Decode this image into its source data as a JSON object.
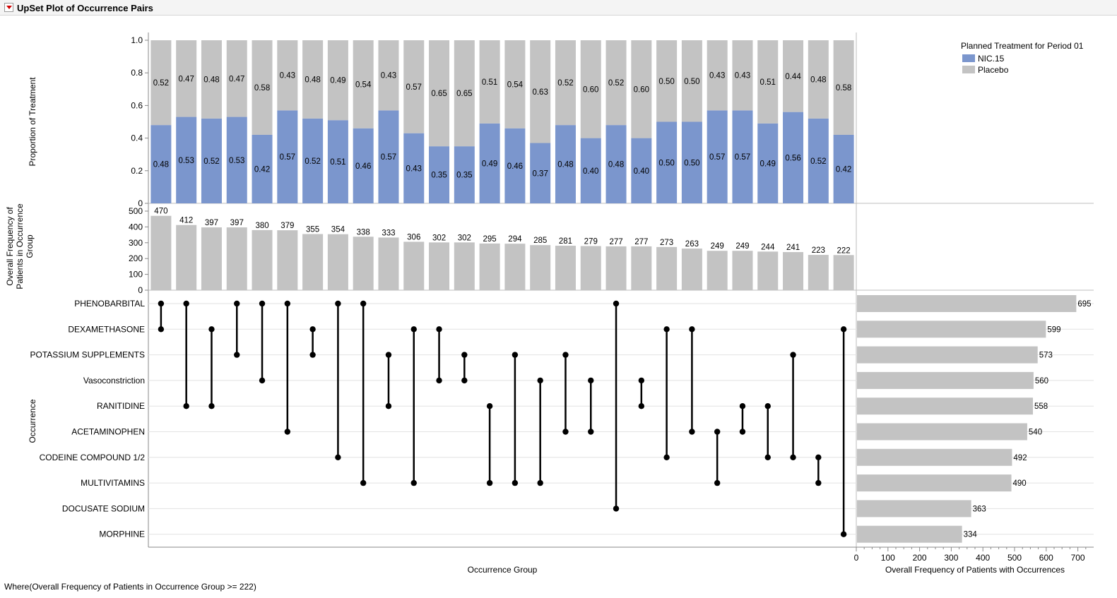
{
  "header": {
    "title": "UpSet Plot of Occurrence Pairs",
    "toggle_icon": "red-disclosure-triangle-icon"
  },
  "footer": {
    "where": "Where(Overall Frequency of Patients in Occurrence Group >= 222)"
  },
  "colors": {
    "nic": "#7b96cd",
    "placebo": "#c3c3c3",
    "dot": "#000000",
    "grid": "#e2e2e2",
    "axis": "#888888"
  },
  "chart_data": {
    "type": "upset",
    "proportion_panel": {
      "type": "bar",
      "stacked": true,
      "ylabel": "Proportion of Treatment",
      "ylim": [
        0,
        1
      ],
      "yticks": [
        "0",
        "0.2",
        "0.4",
        "0.6",
        "0.8",
        "1.0"
      ],
      "legend": {
        "title": "Planned Treatment for Period 01",
        "position": "top-right",
        "entries": [
          "NIC.15",
          "Placebo"
        ]
      },
      "series": [
        {
          "name": "NIC.15",
          "values": [
            0.48,
            0.53,
            0.52,
            0.53,
            0.42,
            0.57,
            0.52,
            0.51,
            0.46,
            0.57,
            0.43,
            0.35,
            0.35,
            0.49,
            0.46,
            0.37,
            0.48,
            0.4,
            0.48,
            0.4,
            0.5,
            0.5,
            0.57,
            0.57,
            0.49,
            0.56,
            0.52,
            0.42
          ]
        },
        {
          "name": "Placebo",
          "values": [
            0.52,
            0.47,
            0.48,
            0.47,
            0.58,
            0.43,
            0.48,
            0.49,
            0.54,
            0.43,
            0.57,
            0.65,
            0.65,
            0.51,
            0.54,
            0.63,
            0.52,
            0.6,
            0.52,
            0.6,
            0.5,
            0.5,
            0.43,
            0.43,
            0.51,
            0.44,
            0.48,
            0.58
          ]
        }
      ]
    },
    "frequency_panel": {
      "type": "bar",
      "ylabel": "Overall Frequency of Patients in Occurrence Group",
      "ylabel_lines": [
        "Overall Frequency of",
        "Patients in Occurrence",
        "Group"
      ],
      "ylim": [
        0,
        500
      ],
      "yticks": [
        "0",
        "100",
        "200",
        "300",
        "400",
        "500"
      ],
      "values": [
        470,
        412,
        397,
        397,
        380,
        379,
        355,
        354,
        338,
        333,
        306,
        302,
        302,
        295,
        294,
        285,
        281,
        279,
        277,
        277,
        273,
        263,
        249,
        249,
        244,
        241,
        223,
        222
      ]
    },
    "matrix": {
      "type": "dot-matrix",
      "xlabel": "Occurrence Group",
      "ylabel": "Occurrence",
      "occurrences": [
        "PHENOBARBITAL",
        "DEXAMETHASONE",
        "POTASSIUM SUPPLEMENTS",
        "Vasoconstriction",
        "RANITIDINE",
        "ACETAMINOPHEN",
        "CODEINE COMPOUND 1/2",
        "MULTIVITAMINS",
        "DOCUSATE SODIUM",
        "MORPHINE"
      ],
      "pairs": [
        [
          0,
          1
        ],
        [
          0,
          4
        ],
        [
          1,
          4
        ],
        [
          0,
          2
        ],
        [
          0,
          3
        ],
        [
          0,
          5
        ],
        [
          1,
          2
        ],
        [
          0,
          6
        ],
        [
          0,
          7
        ],
        [
          2,
          4
        ],
        [
          1,
          7
        ],
        [
          1,
          3
        ],
        [
          2,
          3
        ],
        [
          4,
          7
        ],
        [
          2,
          7
        ],
        [
          3,
          7
        ],
        [
          2,
          5
        ],
        [
          3,
          5
        ],
        [
          0,
          8
        ],
        [
          3,
          4
        ],
        [
          1,
          6
        ],
        [
          1,
          5
        ],
        [
          5,
          7
        ],
        [
          4,
          5
        ],
        [
          4,
          6
        ],
        [
          2,
          6
        ],
        [
          6,
          7
        ],
        [
          1,
          9
        ]
      ]
    },
    "occurrence_panel": {
      "type": "bar",
      "orientation": "horizontal",
      "xlabel": "Overall Frequency of Patients with Occurrences",
      "xlim": [
        0,
        750
      ],
      "xticks": [
        "0",
        "100",
        "200",
        "300",
        "400",
        "500",
        "600",
        "700"
      ],
      "values": [
        695,
        599,
        573,
        560,
        558,
        540,
        492,
        490,
        363,
        334
      ]
    }
  }
}
